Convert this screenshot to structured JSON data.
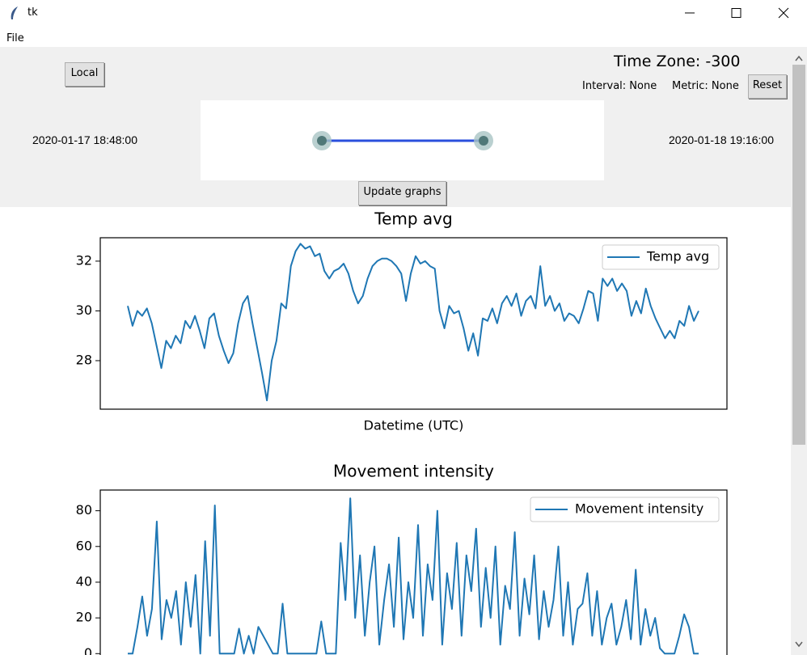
{
  "window": {
    "title": "tk",
    "menu": [
      "File"
    ]
  },
  "controls": {
    "local_button": "Local",
    "time_zone": "Time Zone: -300",
    "interval": "Interval: None",
    "metric": "Metric: None",
    "reset_button": "Reset",
    "start_date": "2020-01-17 18:48:00",
    "end_date": "2020-01-18 19:16:00",
    "update_button": "Update graphs"
  },
  "chart_data": [
    {
      "type": "line",
      "title": "Temp avg",
      "xlabel": "Datetime (UTC)",
      "legend": "upper right",
      "ylim": [
        26.05,
        32.94
      ],
      "yticks": [
        28,
        30,
        32
      ],
      "series": [
        {
          "name": "Temp avg",
          "color": "#1f77b4",
          "values": [
            30.2,
            29.4,
            30.0,
            29.8,
            30.1,
            29.5,
            28.6,
            27.7,
            28.8,
            28.5,
            29.0,
            28.7,
            29.6,
            29.3,
            29.8,
            29.2,
            28.5,
            29.7,
            29.9,
            29.0,
            28.4,
            27.9,
            28.3,
            29.5,
            30.3,
            30.6,
            29.5,
            28.5,
            27.5,
            26.4,
            28.0,
            28.8,
            30.3,
            30.1,
            31.8,
            32.4,
            32.7,
            32.5,
            32.6,
            32.2,
            32.3,
            31.6,
            31.3,
            31.6,
            31.7,
            31.9,
            31.5,
            30.8,
            30.3,
            30.6,
            31.3,
            31.8,
            32.0,
            32.1,
            32.1,
            32.0,
            31.8,
            31.5,
            30.4,
            31.5,
            32.2,
            31.9,
            32.0,
            31.8,
            31.7,
            30.0,
            29.3,
            30.2,
            29.9,
            30.0,
            29.3,
            28.4,
            29.1,
            28.2,
            29.7,
            29.6,
            30.1,
            29.5,
            30.3,
            30.6,
            30.2,
            30.7,
            29.8,
            30.4,
            30.6,
            30.1,
            31.8,
            30.2,
            30.6,
            30.0,
            30.3,
            29.6,
            29.9,
            29.8,
            29.5,
            30.1,
            30.8,
            30.7,
            29.6,
            31.3,
            31.0,
            31.3,
            30.8,
            31.1,
            30.8,
            29.8,
            30.4,
            29.9,
            30.9,
            30.2,
            29.7,
            29.3,
            28.9,
            29.2,
            28.9,
            29.6,
            29.4,
            30.2,
            29.6,
            30.0
          ]
        }
      ]
    },
    {
      "type": "line",
      "title": "Movement intensity",
      "legend": "upper right",
      "ylim": [
        -4.4,
        91.6
      ],
      "yticks": [
        0,
        20,
        40,
        60,
        80
      ],
      "series": [
        {
          "name": "Movement intensity",
          "color": "#1f77b4",
          "values": [
            0,
            0,
            15,
            32,
            10,
            25,
            74,
            8,
            30,
            20,
            35,
            5,
            40,
            15,
            44,
            0,
            63,
            10,
            83,
            0,
            0,
            0,
            0,
            14,
            0,
            10,
            0,
            15,
            10,
            5,
            0,
            0,
            28,
            0,
            0,
            0,
            0,
            0,
            0,
            0,
            18,
            0,
            0,
            0,
            62,
            30,
            87,
            20,
            55,
            10,
            40,
            60,
            5,
            30,
            50,
            15,
            65,
            8,
            40,
            20,
            72,
            10,
            50,
            30,
            80,
            5,
            45,
            25,
            62,
            10,
            55,
            35,
            70,
            15,
            48,
            20,
            60,
            5,
            38,
            25,
            68,
            10,
            42,
            22,
            55,
            8,
            35,
            15,
            30,
            60,
            10,
            40,
            5,
            25,
            28,
            45,
            10,
            35,
            5,
            20,
            28,
            5,
            15,
            30,
            8,
            47,
            5,
            25,
            10,
            20,
            3,
            0,
            0,
            0,
            10,
            22,
            15,
            0,
            0
          ]
        }
      ]
    }
  ]
}
